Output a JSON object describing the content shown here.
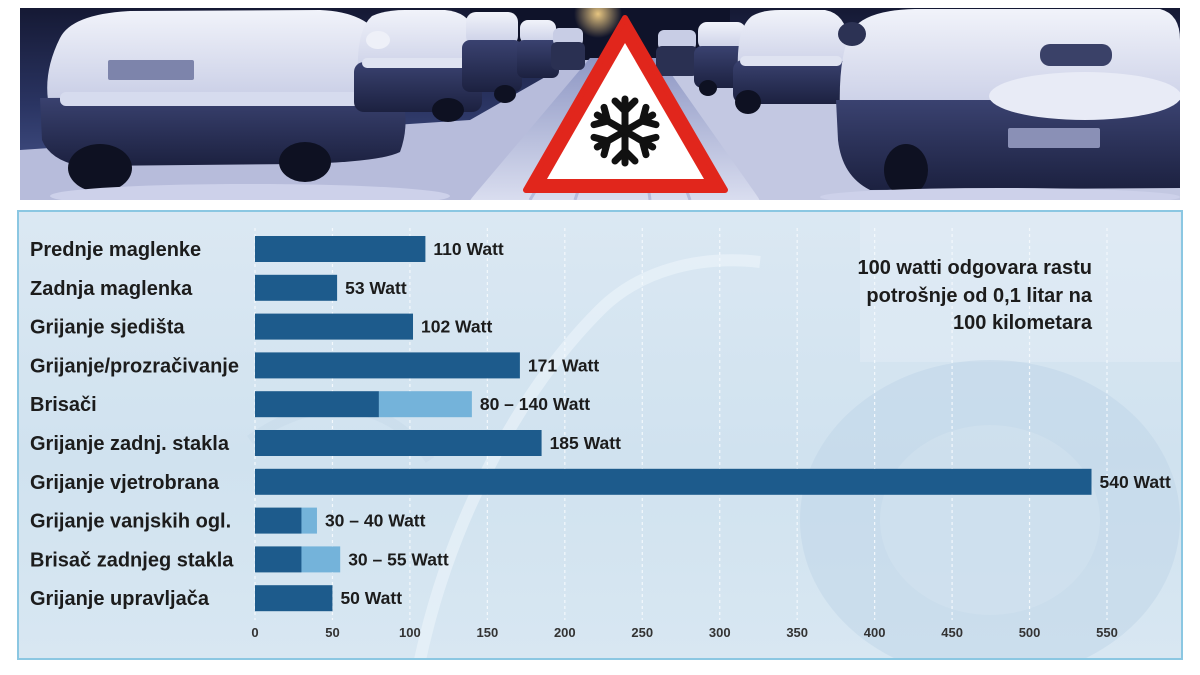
{
  "colors": {
    "bar": "#1d5b8c",
    "bar_range": "#74b3da",
    "sign_border": "#e1261c",
    "panel_border": "#8bc7e2"
  },
  "banner": {
    "sign_icon": "snowflake-icon"
  },
  "chart_data": {
    "type": "bar",
    "orientation": "horizontal",
    "categories": [
      "Prednje maglenke",
      "Zadnja maglenka",
      "Grijanje sjedišta",
      "Grijanje/prozračivanje",
      "Brisači",
      "Grijanje zadnj. stakla",
      "Grijanje vjetrobrana",
      "Grijanje vanjskih ogl.",
      "Brisač zadnjeg stakla",
      "Grijanje upravljača"
    ],
    "values": [
      110,
      53,
      102,
      171,
      140,
      185,
      540,
      40,
      55,
      50
    ],
    "values_low": [
      110,
      53,
      102,
      171,
      80,
      185,
      540,
      30,
      30,
      50
    ],
    "value_labels": [
      "110 Watt",
      "53 Watt",
      "102 Watt",
      "171 Watt",
      "80 – 140 Watt",
      "185 Watt",
      "540 Watt",
      "30 – 40 Watt",
      "30 – 55 Watt",
      "50 Watt"
    ],
    "xlim": [
      0,
      550
    ],
    "xticks": [
      0,
      50,
      100,
      150,
      200,
      250,
      300,
      350,
      400,
      450,
      500,
      550
    ],
    "grid": true,
    "annotation": [
      "100 watti odgovara rastu",
      "potrošnje od 0,1 litar na",
      "100 kilometara"
    ]
  }
}
